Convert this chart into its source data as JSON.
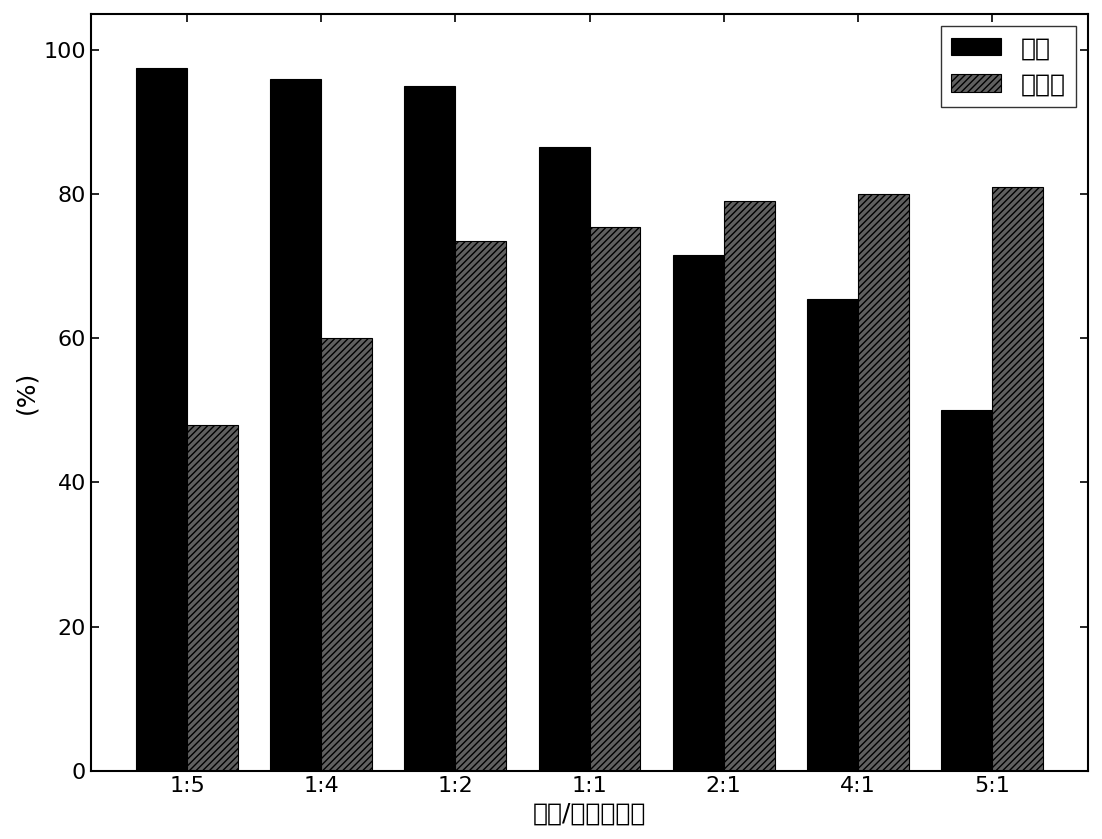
{
  "categories": [
    "1:5",
    "1:4",
    "1:2",
    "1:1",
    "2:1",
    "4:1",
    "5:1"
  ],
  "purity": [
    97.5,
    96.0,
    95.0,
    86.5,
    71.5,
    65.5,
    50.0
  ],
  "extraction_rate": [
    48.0,
    60.0,
    73.5,
    75.5,
    79.0,
    80.0,
    81.0
  ],
  "purity_color": "#000000",
  "extraction_facecolor": "#606060",
  "xlabel": "乙醚/水的体积比",
  "ylabel": "(%)",
  "legend_labels": [
    "绍度",
    "萋取率"
  ],
  "ylim": [
    0,
    105
  ],
  "yticks": [
    0,
    20,
    40,
    60,
    80,
    100
  ],
  "bar_width": 0.38,
  "label_fontsize": 18,
  "tick_fontsize": 16,
  "legend_fontsize": 18,
  "hatch_pattern": "/////"
}
